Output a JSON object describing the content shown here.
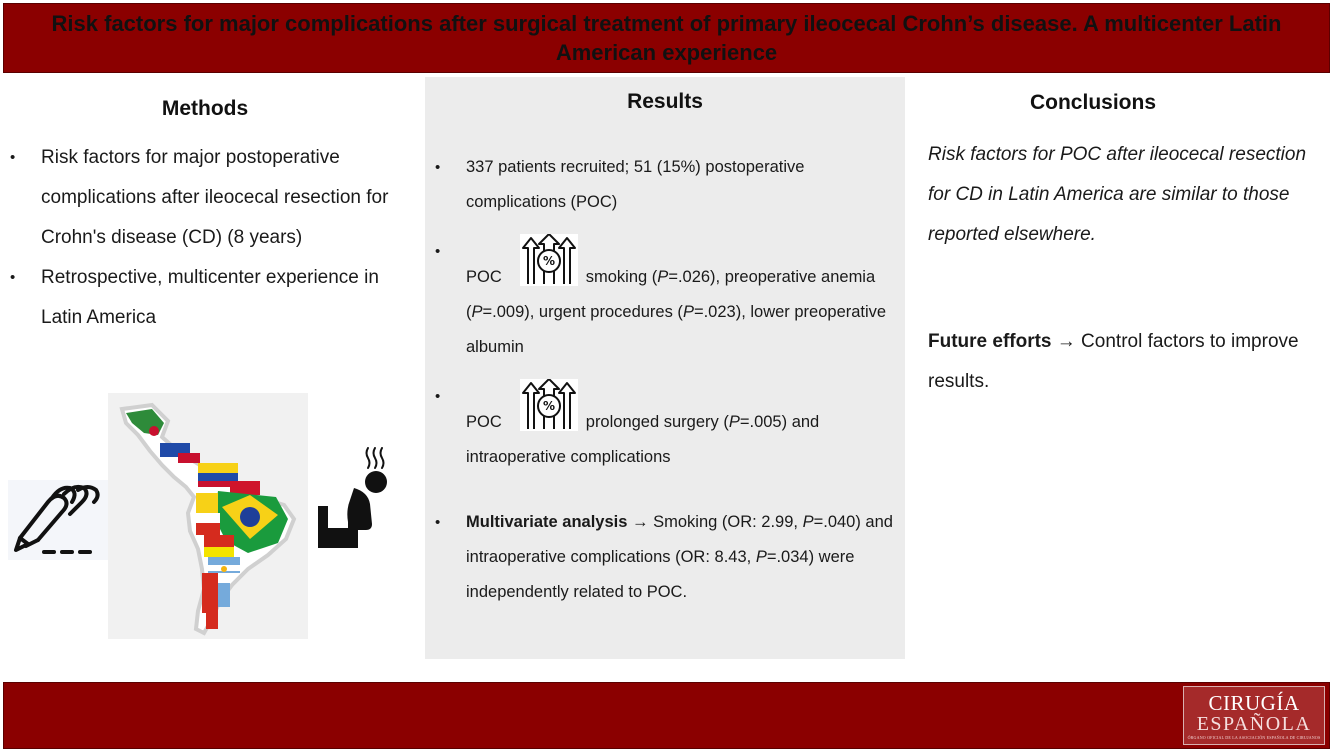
{
  "header": {
    "title": "Risk factors for major complications after surgical treatment of primary ileocecal Crohn’s disease. A multicenter Latin American experience"
  },
  "methods": {
    "title": "Methods",
    "items": [
      "Risk factors for major postoperative complications after ileocecal resection for Crohn's disease (CD) (8 years)",
      "Retrospective, multicenter experience in Latin America"
    ]
  },
  "results": {
    "title": "Results",
    "item1": "337 patients recruited; 51 (15%) postoperative complications (POC)",
    "item2": {
      "prefix": "POC",
      "p1_label": "smoking (",
      "p_letter": "P",
      "p1_value": "=.026),  preoperative anemia (",
      "p2_value": "=.009), urgent procedures (",
      "p3_value": "=.023), lower preoperative albumin"
    },
    "item3": {
      "prefix": "POC",
      "text_a": "prolonged surgery (",
      "p_letter": "P",
      "text_b": "=.005) and intraoperative complications"
    },
    "item4": {
      "bold": "Multivariate analysis",
      "arrow": "→",
      "text_a": " Smoking (OR:  2.99, ",
      "p_letter": "P",
      "text_b": "=.040) and intraoperative complications (OR: 8.43, ",
      "text_c": "=.034) were independently related to POC."
    }
  },
  "conclusions": {
    "title": "Conclusions",
    "text": "Risk factors for POC after ileocecal resection for CD in Latin America are similar to those reported elsewhere.",
    "future_bold": "Future efforts",
    "arrow": "→",
    "future_text": " Control factors to improve results."
  },
  "logo": {
    "line1": "CIRUGÍA",
    "line2": "ESPAÑOLA",
    "line3": "ÓRGANO OFICIAL DE LA ASOCIACIÓN ESPAÑOLA DE CIRUJANOS"
  },
  "colors": {
    "banner": "#8b0000",
    "panel": "#ececec"
  },
  "icons": [
    "increase-percentage-icon",
    "latin-america-flag-map",
    "surgeon-hand-scalpel-icon",
    "sick-person-icon"
  ]
}
